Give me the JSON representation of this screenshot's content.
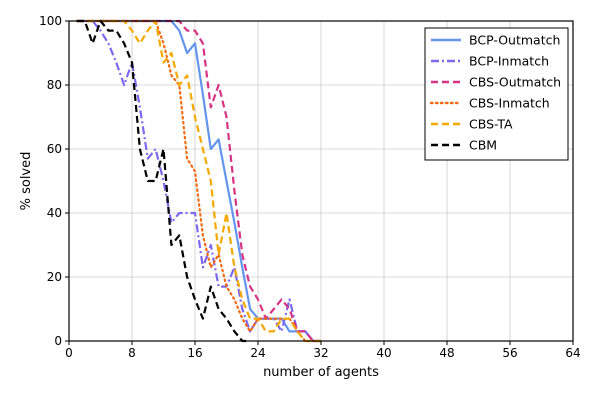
{
  "chart_data": {
    "type": "line",
    "xlabel": "number of agents",
    "ylabel": "% solved",
    "xlim": [
      0,
      64
    ],
    "ylim": [
      0,
      100
    ],
    "xticks": [
      0,
      8,
      16,
      24,
      32,
      40,
      48,
      56,
      64
    ],
    "yticks": [
      0,
      20,
      40,
      60,
      80,
      100
    ],
    "grid": true,
    "legend_position": "top-right",
    "series": [
      {
        "name": "BCP-Outmatch",
        "color": "#6495ED",
        "dash": "solid",
        "x": [
          1,
          2,
          3,
          4,
          5,
          6,
          7,
          8,
          9,
          10,
          11,
          12,
          13,
          14,
          15,
          16,
          17,
          18,
          19,
          20,
          21,
          22,
          23,
          24,
          25,
          26,
          27,
          28,
          29,
          30,
          31,
          32
        ],
        "y": [
          100,
          100,
          100,
          100,
          100,
          100,
          100,
          100,
          100,
          100,
          100,
          100,
          100,
          97,
          90,
          93,
          77,
          60,
          63,
          50,
          37,
          23,
          10,
          7,
          7,
          7,
          7,
          3,
          3,
          3,
          0,
          0
        ]
      },
      {
        "name": "BCP-Inmatch",
        "color": "#7B68EE",
        "dash": "dashdot",
        "x": [
          1,
          2,
          3,
          4,
          5,
          6,
          7,
          8,
          9,
          10,
          11,
          12,
          13,
          14,
          15,
          16,
          17,
          18,
          19,
          20,
          21,
          22,
          23,
          24,
          25,
          26,
          27,
          28,
          29,
          30,
          31,
          32
        ],
        "y": [
          100,
          100,
          100,
          97,
          93,
          87,
          80,
          87,
          73,
          57,
          60,
          50,
          37,
          40,
          40,
          40,
          23,
          30,
          17,
          17,
          23,
          10,
          3,
          7,
          7,
          7,
          3,
          13,
          3,
          3,
          0,
          0
        ]
      },
      {
        "name": "CBS-Outmatch",
        "color": "#D63384",
        "dash": "dashed",
        "x": [
          1,
          2,
          3,
          4,
          5,
          6,
          7,
          8,
          9,
          10,
          11,
          12,
          13,
          14,
          15,
          16,
          17,
          18,
          19,
          20,
          21,
          22,
          23,
          24,
          25,
          26,
          27,
          28,
          29,
          30,
          31,
          32
        ],
        "y": [
          100,
          100,
          100,
          100,
          100,
          100,
          100,
          100,
          100,
          100,
          100,
          100,
          100,
          100,
          97,
          97,
          93,
          73,
          80,
          70,
          47,
          27,
          17,
          13,
          7,
          10,
          13,
          10,
          3,
          3,
          0,
          0
        ]
      },
      {
        "name": "CBS-Inmatch",
        "color": "#F36A10",
        "dash": "dotted",
        "x": [
          1,
          2,
          3,
          4,
          5,
          6,
          7,
          8,
          9,
          10,
          11,
          12,
          13,
          14,
          15,
          16,
          17,
          18,
          19,
          20,
          21,
          22,
          23,
          24,
          25,
          26,
          27,
          28,
          29,
          30,
          31,
          32
        ],
        "y": [
          100,
          100,
          100,
          100,
          100,
          100,
          100,
          100,
          100,
          100,
          100,
          93,
          83,
          80,
          57,
          53,
          33,
          23,
          27,
          17,
          13,
          7,
          3,
          7,
          7,
          7,
          7,
          7,
          3,
          0,
          0,
          0
        ]
      },
      {
        "name": "CBS-TA",
        "color": "#F5A800",
        "dash": "dashed",
        "x": [
          1,
          2,
          3,
          4,
          5,
          6,
          7,
          8,
          9,
          10,
          11,
          12,
          13,
          14,
          15,
          16,
          17,
          18,
          19,
          20,
          21,
          22,
          23,
          24,
          25,
          26,
          27,
          28,
          29,
          30,
          31,
          32
        ],
        "y": [
          100,
          100,
          100,
          100,
          100,
          100,
          100,
          97,
          93,
          97,
          100,
          87,
          90,
          80,
          83,
          70,
          60,
          50,
          27,
          40,
          23,
          13,
          7,
          7,
          3,
          3,
          7,
          7,
          3,
          0,
          0,
          0
        ]
      },
      {
        "name": "CBM",
        "color": "#000000",
        "dash": "dashed",
        "x": [
          1,
          2,
          3,
          4,
          5,
          6,
          7,
          8,
          9,
          10,
          11,
          12,
          13,
          14,
          15,
          16,
          17,
          18,
          19,
          20,
          21,
          22,
          23
        ],
        "y": [
          100,
          100,
          93,
          100,
          97,
          97,
          93,
          87,
          60,
          50,
          50,
          60,
          30,
          33,
          20,
          13,
          7,
          17,
          10,
          7,
          3,
          0,
          0
        ]
      }
    ]
  }
}
